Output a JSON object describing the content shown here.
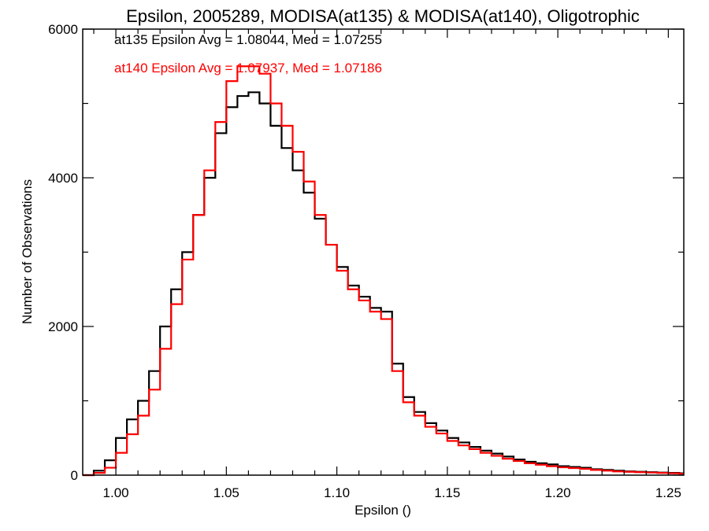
{
  "chart_data": {
    "type": "line",
    "title": "Epsilon, 2005289, MODISA(at135) & MODISA(at140), Oligotrophic",
    "xlabel": "Epsilon ()",
    "ylabel": "Number of Observations",
    "xlim": [
      0.985,
      1.257
    ],
    "ylim": [
      0,
      6000
    ],
    "x_ticks": [
      1.0,
      1.05,
      1.1,
      1.15,
      1.2,
      1.25
    ],
    "x_tick_labels": [
      "1.00",
      "1.05",
      "1.10",
      "1.15",
      "1.20",
      "1.25"
    ],
    "x_minor_step": 0.01,
    "y_ticks": [
      0,
      2000,
      4000,
      6000
    ],
    "y_tick_labels": [
      "0",
      "2000",
      "4000",
      "6000"
    ],
    "y_minor_step": 1000,
    "grid": false,
    "legend_position": "top-left",
    "series": [
      {
        "name": "at135 Epsilon Avg = 1.08044, Med = 1.07255",
        "color": "#000000",
        "x": [
          0.985,
          0.99,
          0.995,
          1.0,
          1.005,
          1.01,
          1.015,
          1.02,
          1.025,
          1.03,
          1.035,
          1.04,
          1.045,
          1.05,
          1.055,
          1.06,
          1.065,
          1.07,
          1.075,
          1.08,
          1.085,
          1.09,
          1.095,
          1.1,
          1.105,
          1.11,
          1.115,
          1.12,
          1.125,
          1.13,
          1.135,
          1.14,
          1.145,
          1.15,
          1.155,
          1.16,
          1.165,
          1.17,
          1.175,
          1.18,
          1.185,
          1.19,
          1.195,
          1.2,
          1.205,
          1.21,
          1.215,
          1.22,
          1.225,
          1.23,
          1.235,
          1.24,
          1.245,
          1.25,
          1.255
        ],
        "y": [
          0,
          60,
          200,
          500,
          750,
          1000,
          1400,
          2000,
          2500,
          3000,
          3500,
          4000,
          4600,
          4950,
          5100,
          5150,
          5000,
          4700,
          4400,
          4100,
          3800,
          3450,
          3100,
          2800,
          2550,
          2400,
          2250,
          2200,
          1500,
          1050,
          850,
          700,
          600,
          500,
          440,
          380,
          330,
          290,
          250,
          210,
          180,
          160,
          145,
          120,
          110,
          100,
          80,
          70,
          60,
          50,
          45,
          40,
          35,
          30,
          25
        ]
      },
      {
        "name": "at140 Epsilon Avg = 1.07937, Med = 1.07186",
        "color": "#ff0000",
        "x": [
          0.985,
          0.99,
          0.995,
          1.0,
          1.005,
          1.01,
          1.015,
          1.02,
          1.025,
          1.03,
          1.035,
          1.04,
          1.045,
          1.05,
          1.055,
          1.06,
          1.065,
          1.07,
          1.075,
          1.08,
          1.085,
          1.09,
          1.095,
          1.1,
          1.105,
          1.11,
          1.115,
          1.12,
          1.125,
          1.13,
          1.135,
          1.14,
          1.145,
          1.15,
          1.155,
          1.16,
          1.165,
          1.17,
          1.175,
          1.18,
          1.185,
          1.19,
          1.195,
          1.2,
          1.205,
          1.21,
          1.215,
          1.22,
          1.225,
          1.23,
          1.235,
          1.24,
          1.245,
          1.25,
          1.255
        ],
        "y": [
          0,
          30,
          100,
          300,
          550,
          800,
          1150,
          1700,
          2300,
          2900,
          3500,
          4100,
          4750,
          5300,
          5500,
          5500,
          5400,
          5000,
          4700,
          4350,
          3950,
          3500,
          3100,
          2750,
          2500,
          2350,
          2200,
          2100,
          1400,
          980,
          800,
          650,
          560,
          460,
          400,
          350,
          300,
          260,
          220,
          190,
          160,
          140,
          120,
          105,
          95,
          85,
          70,
          60,
          50,
          45,
          40,
          35,
          30,
          25,
          20
        ]
      }
    ]
  }
}
